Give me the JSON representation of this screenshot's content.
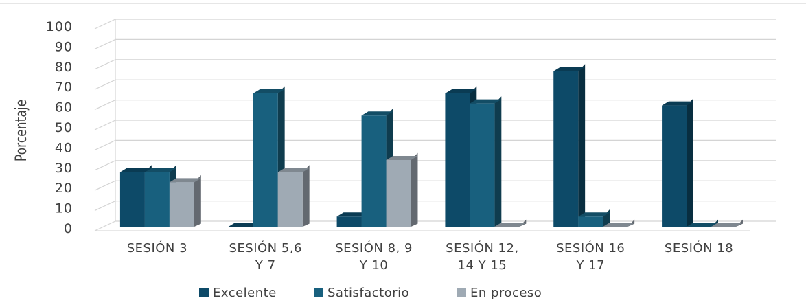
{
  "chart_data": {
    "type": "bar",
    "title": "",
    "xlabel": "",
    "ylabel": "Porcentaje",
    "ylim": [
      0,
      100
    ],
    "yticks": [
      "0",
      "10",
      "20",
      "30",
      "40",
      "50",
      "60",
      "70",
      "80",
      "90",
      "100"
    ],
    "grid": true,
    "legend_position": "bottom",
    "categories": [
      [
        "SESIÓN 3"
      ],
      [
        "SESIÓN 5,6",
        "Y 7"
      ],
      [
        "SESIÓN 8, 9",
        "Y 10"
      ],
      [
        "SESIÓN 12,",
        "14 Y 15"
      ],
      [
        "SESIÓN 16",
        "Y 17"
      ],
      [
        "SESIÓN 18"
      ]
    ],
    "series": [
      {
        "name": "Excelente",
        "color": "#0d4a68",
        "values": [
          27,
          0,
          5,
          66,
          77,
          60
        ]
      },
      {
        "name": "Satisfactorio",
        "color": "#18607e",
        "values": [
          27,
          66,
          55,
          61,
          5,
          0
        ]
      },
      {
        "name": "En proceso",
        "color": "#9faab4",
        "values": [
          22,
          27,
          33,
          0,
          0,
          0
        ]
      }
    ]
  }
}
